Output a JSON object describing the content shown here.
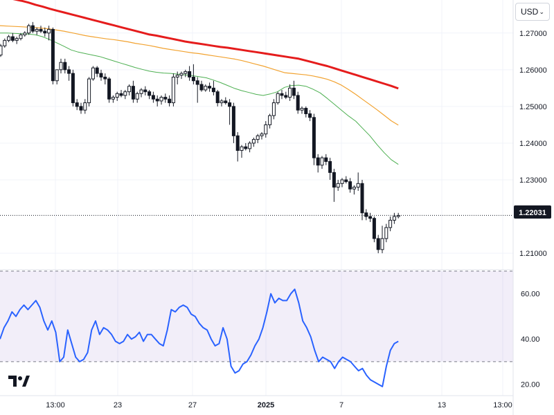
{
  "toolbar": {
    "currency": "USD"
  },
  "price_label": "1.22031",
  "chart_data": [
    {
      "type": "candlestick",
      "title": "",
      "ylim": [
        1.2055,
        1.279
      ],
      "y_ticks": [
        "1.27000",
        "1.26000",
        "1.25000",
        "1.24000",
        "1.23000",
        "1.21000"
      ],
      "last_price": 1.22031,
      "grid": true,
      "x_ticks": [
        {
          "label": "13:00",
          "x": 8
        },
        {
          "label": "23",
          "x": 29
        },
        {
          "label": "27",
          "x": 46
        },
        {
          "label": "2025",
          "x": 63
        },
        {
          "label": "7",
          "x": 81
        },
        {
          "label": "13",
          "x": 106
        },
        {
          "label": "13:00",
          "x": 121
        }
      ],
      "candles": [
        [
          1.264,
          1.267,
          1.2635,
          1.2665
        ],
        [
          1.2665,
          1.2685,
          1.266,
          1.268
        ],
        [
          1.268,
          1.2695,
          1.2675,
          1.269
        ],
        [
          1.269,
          1.27,
          1.2675,
          1.268
        ],
        [
          1.268,
          1.269,
          1.267,
          1.2685
        ],
        [
          1.2685,
          1.27,
          1.268,
          1.2695
        ],
        [
          1.2695,
          1.2705,
          1.269,
          1.27
        ],
        [
          1.27,
          1.2725,
          1.2695,
          1.272
        ],
        [
          1.272,
          1.273,
          1.27,
          1.2705
        ],
        [
          1.2705,
          1.2715,
          1.2695,
          1.271
        ],
        [
          1.271,
          1.272,
          1.27,
          1.2705
        ],
        [
          1.2705,
          1.2715,
          1.269,
          1.27
        ],
        [
          1.27,
          1.272,
          1.268,
          1.271
        ],
        [
          1.271,
          1.2715,
          1.256,
          1.257
        ],
        [
          1.257,
          1.26,
          1.256,
          1.26
        ],
        [
          1.26,
          1.263,
          1.259,
          1.262
        ],
        [
          1.262,
          1.263,
          1.259,
          1.26
        ],
        [
          1.26,
          1.261,
          1.257,
          1.259
        ],
        [
          1.259,
          1.26,
          1.25,
          1.251
        ],
        [
          1.251,
          1.252,
          1.249,
          1.25
        ],
        [
          1.25,
          1.251,
          1.248,
          1.249
        ],
        [
          1.249,
          1.252,
          1.248,
          1.251
        ],
        [
          1.251,
          1.258,
          1.25,
          1.2575
        ],
        [
          1.2575,
          1.261,
          1.257,
          1.2605
        ],
        [
          1.2605,
          1.261,
          1.258,
          1.259
        ],
        [
          1.259,
          1.26,
          1.257,
          1.258
        ],
        [
          1.258,
          1.259,
          1.256,
          1.2575
        ],
        [
          1.2575,
          1.258,
          1.251,
          1.252
        ],
        [
          1.252,
          1.253,
          1.251,
          1.2525
        ],
        [
          1.2525,
          1.254,
          1.2515,
          1.2535
        ],
        [
          1.2535,
          1.2545,
          1.2525,
          1.253
        ],
        [
          1.253,
          1.2545,
          1.252,
          1.254
        ],
        [
          1.254,
          1.256,
          1.253,
          1.2555
        ],
        [
          1.2555,
          1.257,
          1.251,
          1.252
        ],
        [
          1.252,
          1.254,
          1.251,
          1.2535
        ],
        [
          1.2535,
          1.255,
          1.2525,
          1.2545
        ],
        [
          1.2545,
          1.2555,
          1.253,
          1.254
        ],
        [
          1.254,
          1.2545,
          1.252,
          1.253
        ],
        [
          1.253,
          1.254,
          1.251,
          1.252
        ],
        [
          1.252,
          1.253,
          1.25,
          1.2515
        ],
        [
          1.2515,
          1.253,
          1.2505,
          1.2525
        ],
        [
          1.2525,
          1.2535,
          1.251,
          1.252
        ],
        [
          1.252,
          1.253,
          1.25,
          1.251
        ],
        [
          1.251,
          1.259,
          1.25,
          1.258
        ],
        [
          1.258,
          1.2595,
          1.256,
          1.2585
        ],
        [
          1.2585,
          1.2595,
          1.2575,
          1.259
        ],
        [
          1.259,
          1.26,
          1.258,
          1.2595
        ],
        [
          1.2595,
          1.261,
          1.257,
          1.258
        ],
        [
          1.258,
          1.2615,
          1.256,
          1.257
        ],
        [
          1.257,
          1.258,
          1.251,
          1.256
        ],
        [
          1.256,
          1.257,
          1.254,
          1.2545
        ],
        [
          1.2545,
          1.256,
          1.254,
          1.2555
        ],
        [
          1.2555,
          1.2565,
          1.254,
          1.255
        ],
        [
          1.255,
          1.257,
          1.253,
          1.254
        ],
        [
          1.254,
          1.2545,
          1.25,
          1.251
        ],
        [
          1.251,
          1.252,
          1.25,
          1.2515
        ],
        [
          1.2515,
          1.2525,
          1.2505,
          1.251
        ],
        [
          1.251,
          1.252,
          1.245,
          1.25
        ],
        [
          1.25,
          1.251,
          1.24,
          1.242
        ],
        [
          1.242,
          1.243,
          1.235,
          1.238
        ],
        [
          1.238,
          1.2395,
          1.236,
          1.239
        ],
        [
          1.239,
          1.24,
          1.238,
          1.2385
        ],
        [
          1.2385,
          1.2405,
          1.2375,
          1.24
        ],
        [
          1.24,
          1.2415,
          1.239,
          1.241
        ],
        [
          1.241,
          1.2425,
          1.24,
          1.242
        ],
        [
          1.242,
          1.243,
          1.241,
          1.2425
        ],
        [
          1.2425,
          1.246,
          1.2415,
          1.245
        ],
        [
          1.245,
          1.248,
          1.244,
          1.2475
        ],
        [
          1.2475,
          1.252,
          1.2465,
          1.251
        ],
        [
          1.251,
          1.254,
          1.2505,
          1.2535
        ],
        [
          1.2535,
          1.2545,
          1.252,
          1.253
        ],
        [
          1.253,
          1.254,
          1.252,
          1.2525
        ],
        [
          1.2525,
          1.256,
          1.2515,
          1.255
        ],
        [
          1.255,
          1.257,
          1.252,
          1.253
        ],
        [
          1.253,
          1.254,
          1.248,
          1.249
        ],
        [
          1.249,
          1.25,
          1.248,
          1.2495
        ],
        [
          1.2495,
          1.25,
          1.247,
          1.248
        ],
        [
          1.248,
          1.249,
          1.246,
          1.247
        ],
        [
          1.247,
          1.248,
          1.234,
          1.236
        ],
        [
          1.236,
          1.237,
          1.232,
          1.234
        ],
        [
          1.234,
          1.2365,
          1.233,
          1.236
        ],
        [
          1.236,
          1.237,
          1.234,
          1.235
        ],
        [
          1.235,
          1.236,
          1.23,
          1.232
        ],
        [
          1.232,
          1.233,
          1.224,
          1.228
        ],
        [
          1.228,
          1.23,
          1.227,
          1.229
        ],
        [
          1.229,
          1.2305,
          1.228,
          1.23
        ],
        [
          1.23,
          1.231,
          1.229,
          1.2295
        ],
        [
          1.2295,
          1.2305,
          1.2265,
          1.2275
        ],
        [
          1.2275,
          1.2285,
          1.226,
          1.228
        ],
        [
          1.228,
          1.232,
          1.227,
          1.229
        ],
        [
          1.229,
          1.23,
          1.219,
          1.221
        ],
        [
          1.221,
          1.222,
          1.219,
          1.22
        ],
        [
          1.22,
          1.221,
          1.2185,
          1.2195
        ],
        [
          1.2195,
          1.22,
          1.213,
          1.214
        ],
        [
          1.214,
          1.215,
          1.21,
          1.211
        ],
        [
          1.211,
          1.2175,
          1.21,
          1.214
        ],
        [
          1.214,
          1.218,
          1.213,
          1.217
        ],
        [
          1.217,
          1.22,
          1.216,
          1.219
        ],
        [
          1.219,
          1.221,
          1.218,
          1.22
        ],
        [
          1.22,
          1.221,
          1.2195,
          1.2203
        ]
      ],
      "moving_averages": [
        {
          "color": "#e51c1c",
          "values": [
            1.28,
            1.2796,
            1.2792,
            1.2788,
            1.2783,
            1.2777,
            1.2772,
            1.2766,
            1.2761,
            1.2756,
            1.2751,
            1.2746,
            1.2741,
            1.2736,
            1.2731,
            1.2726,
            1.2721,
            1.2716,
            1.2711,
            1.2706,
            1.2701,
            1.2696,
            1.2693,
            1.2689,
            1.2685,
            1.2681,
            1.2677,
            1.2674,
            1.2671,
            1.2668,
            1.2665,
            1.2662,
            1.266,
            1.2657,
            1.2654,
            1.2651,
            1.2648,
            1.2645,
            1.2642,
            1.2639,
            1.2636,
            1.2633,
            1.263,
            1.2625,
            1.262,
            1.2615,
            1.261,
            1.2604,
            1.2598,
            1.2592,
            1.2586,
            1.258,
            1.2574,
            1.2568,
            1.2562,
            1.2556,
            1.2549
          ]
        },
        {
          "color": "#f2a22f",
          "values": [
            1.272,
            1.2719,
            1.2718,
            1.2717,
            1.2716,
            1.2715,
            1.2713,
            1.2711,
            1.2708,
            1.2705,
            1.2701,
            1.2697,
            1.2693,
            1.269,
            1.2687,
            1.2684,
            1.2682,
            1.2679,
            1.2676,
            1.2672,
            1.2669,
            1.2666,
            1.2662,
            1.2658,
            1.2655,
            1.2652,
            1.2649,
            1.2646,
            1.2644,
            1.2641,
            1.2638,
            1.2635,
            1.2632,
            1.2629,
            1.2625,
            1.262,
            1.2615,
            1.261,
            1.2604,
            1.2598,
            1.2592,
            1.259,
            1.2588,
            1.2586,
            1.2583,
            1.2579,
            1.2574,
            1.2567,
            1.2558,
            1.2546,
            1.2533,
            1.2519,
            1.2505,
            1.2491,
            1.2476,
            1.2461,
            1.2449
          ]
        },
        {
          "color": "#4caf50",
          "values": [
            1.27,
            1.27,
            1.2699,
            1.2698,
            1.2697,
            1.2695,
            1.269,
            1.2682,
            1.2673,
            1.2664,
            1.2654,
            1.2648,
            1.2644,
            1.264,
            1.2636,
            1.263,
            1.2624,
            1.2618,
            1.2612,
            1.2606,
            1.2601,
            1.2596,
            1.2593,
            1.2591,
            1.259,
            1.2588,
            1.2586,
            1.2584,
            1.2581,
            1.2578,
            1.2572,
            1.2565,
            1.2557,
            1.2549,
            1.2543,
            1.2538,
            1.2533,
            1.253,
            1.2534,
            1.254,
            1.2552,
            1.2557,
            1.2558,
            1.2555,
            1.2547,
            1.2537,
            1.2522,
            1.2506,
            1.249,
            1.2474,
            1.246,
            1.244,
            1.242,
            1.2396,
            1.2374,
            1.2355,
            1.2342
          ]
        }
      ],
      "rsi": {
        "ylim": [
          15,
          70
        ],
        "band": [
          30,
          70
        ],
        "y_ticks": [
          "60.00",
          "40.00",
          "20.00"
        ],
        "color": "#2962ff",
        "values": [
          40,
          45,
          48,
          52,
          50,
          53,
          55,
          53,
          55,
          57,
          54,
          48,
          44,
          48,
          43,
          30,
          32,
          44,
          38,
          32,
          30,
          31,
          34,
          44,
          48,
          42,
          45,
          44,
          42,
          39,
          38,
          39,
          42,
          40,
          41,
          43,
          39,
          42,
          42,
          40,
          38,
          37,
          44,
          53,
          52,
          54,
          55,
          54,
          51,
          50,
          47,
          45,
          44,
          40,
          37,
          38,
          45,
          40,
          28,
          25,
          26,
          29,
          30,
          33,
          37,
          40,
          45,
          52,
          60,
          56,
          58,
          57,
          57,
          60,
          62,
          56,
          48,
          45,
          41,
          35,
          30,
          32,
          31,
          30,
          27,
          30,
          32,
          31,
          30,
          28,
          26,
          27,
          24,
          22,
          21,
          20,
          19,
          28,
          35,
          38,
          39
        ]
      }
    }
  ]
}
